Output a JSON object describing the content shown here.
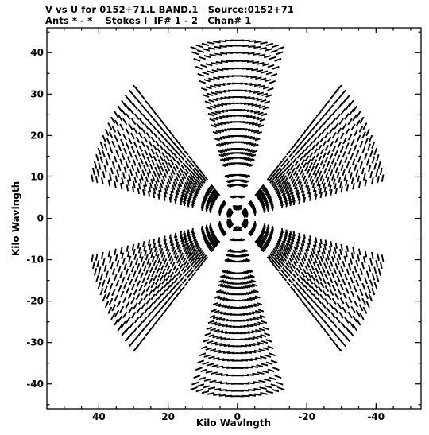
{
  "header": {
    "line1": "V vs U for 0152+71.L BAND.1   Source:0152+71",
    "line2": "Ants * - *    Stokes I  IF# 1 - 2   Chan# 1"
  },
  "chart_data": {
    "type": "scatter",
    "xlabel": "Kilo Wavlngth",
    "ylabel": "Kilo Wavlngth",
    "xlim": [
      55,
      -53
    ],
    "ylim": [
      -46,
      46
    ],
    "x_reversed": true,
    "x_ticks": [
      40,
      20,
      0,
      -20,
      -40
    ],
    "x_tick_labels": [
      "40",
      "20",
      "0",
      "-20",
      "-40"
    ],
    "y_ticks": [
      40,
      30,
      20,
      10,
      0,
      -10,
      -20,
      -30,
      -40
    ],
    "y_tick_labels": [
      "40",
      "30",
      "20",
      "10",
      "0",
      "-10",
      "-20",
      "-30",
      "-40"
    ],
    "grid": false,
    "marker": "short dash segments",
    "color": "#000000",
    "uv_tracks": {
      "description": "six-fold symmetric uv coverage of a Y-shaped array; each baseline traces an arc, plotted with its conjugate (-u,-v)",
      "arm_angles_deg": [
        90,
        210,
        330
      ],
      "track_span_deg": 34,
      "samples_per_track": 16,
      "baseline_lengths_klambda": [
        2.3,
        2.9,
        5.3,
        8.1,
        9.2,
        10.5,
        13.3,
        14.6,
        15.8,
        16.8,
        18.4,
        19.9,
        21.6,
        23.3,
        24.8,
        26.2,
        27.8,
        29.3,
        30.9,
        32.6,
        34.4,
        36.2,
        38.0,
        40.0,
        41.7,
        43.0
      ]
    }
  }
}
